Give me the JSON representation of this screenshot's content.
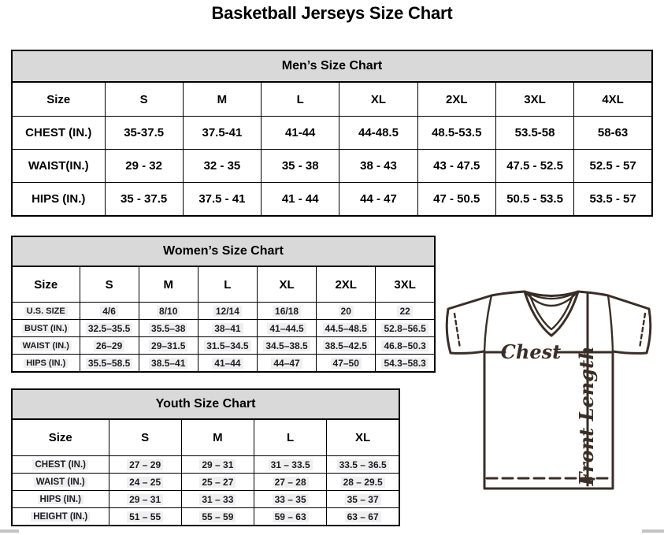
{
  "page": {
    "title": "Basketball Jerseys Size Chart"
  },
  "tables": {
    "mens": {
      "title": "Men’s Size Chart",
      "columns": [
        "Size",
        "S",
        "M",
        "L",
        "XL",
        "2XL",
        "3XL",
        "4XL"
      ],
      "rows": [
        {
          "label": "CHEST (IN.)",
          "values": [
            "35-37.5",
            "37.5-41",
            "41-44",
            "44-48.5",
            "48.5-53.5",
            "53.5-58",
            "58-63"
          ]
        },
        {
          "label": "WAIST(IN.)",
          "values": [
            "29 - 32",
            "32 - 35",
            "35 - 38",
            "38 - 43",
            "43 - 47.5",
            "47.5 - 52.5",
            "52.5 - 57"
          ]
        },
        {
          "label": "HIPS (IN.)",
          "values": [
            "35 - 37.5",
            "37.5 - 41",
            "41 - 44",
            "44 - 47",
            "47 - 50.5",
            "50.5 - 53.5",
            "53.5 - 57"
          ]
        }
      ]
    },
    "womens": {
      "title": "Women’s Size Chart",
      "columns": [
        "Size",
        "S",
        "M",
        "L",
        "XL",
        "2XL",
        "3XL"
      ],
      "rows": [
        {
          "label": "U.S. SIZE",
          "values": [
            "4/6",
            "8/10",
            "12/14",
            "16/18",
            "20",
            "22"
          ]
        },
        {
          "label": "BUST (IN.)",
          "values": [
            "32.5–35.5",
            "35.5–38",
            "38–41",
            "41–44.5",
            "44.5–48.5",
            "52.8–56.5"
          ]
        },
        {
          "label": "WAIST (IN.)",
          "values": [
            "26–29",
            "29–31.5",
            "31.5–34.5",
            "34.5–38.5",
            "38.5–42.5",
            "46.8–50.3"
          ]
        },
        {
          "label": "HIPS (IN.)",
          "values": [
            "35.5–58.5",
            "38.5–41",
            "41–44",
            "44–47",
            "47–50",
            "54.3–58.3"
          ]
        }
      ]
    },
    "youth": {
      "title": "Youth Size Chart",
      "columns": [
        "Size",
        "S",
        "M",
        "L",
        "XL"
      ],
      "rows": [
        {
          "label": "CHEST (IN.)",
          "values": [
            "27 – 29",
            "29 – 31",
            "31 – 33.5",
            "33.5 – 36.5"
          ]
        },
        {
          "label": "WAIST (IN.)",
          "values": [
            "24 – 25",
            "25 – 27",
            "27 – 28",
            "28 – 29.5"
          ]
        },
        {
          "label": "HIPS (IN.)",
          "values": [
            "29 – 31",
            "31 – 33",
            "33 – 35",
            "35 – 37"
          ]
        },
        {
          "label": "HEIGHT (IN.)",
          "values": [
            "51 – 55",
            "55 – 59",
            "59 – 63",
            "63 – 67"
          ]
        }
      ]
    }
  },
  "table_layout_widths": {
    "mens": 118,
    "womens": 86,
    "youth": 123
  },
  "diagram": {
    "chest_label": "Chest",
    "front_length_label": "Front Length"
  },
  "colors": {
    "table_header_bg": "#d9d9d9",
    "table_border": "#000000",
    "jersey_line": "#3a2e27",
    "scrollbar": "#c3c3c3"
  }
}
